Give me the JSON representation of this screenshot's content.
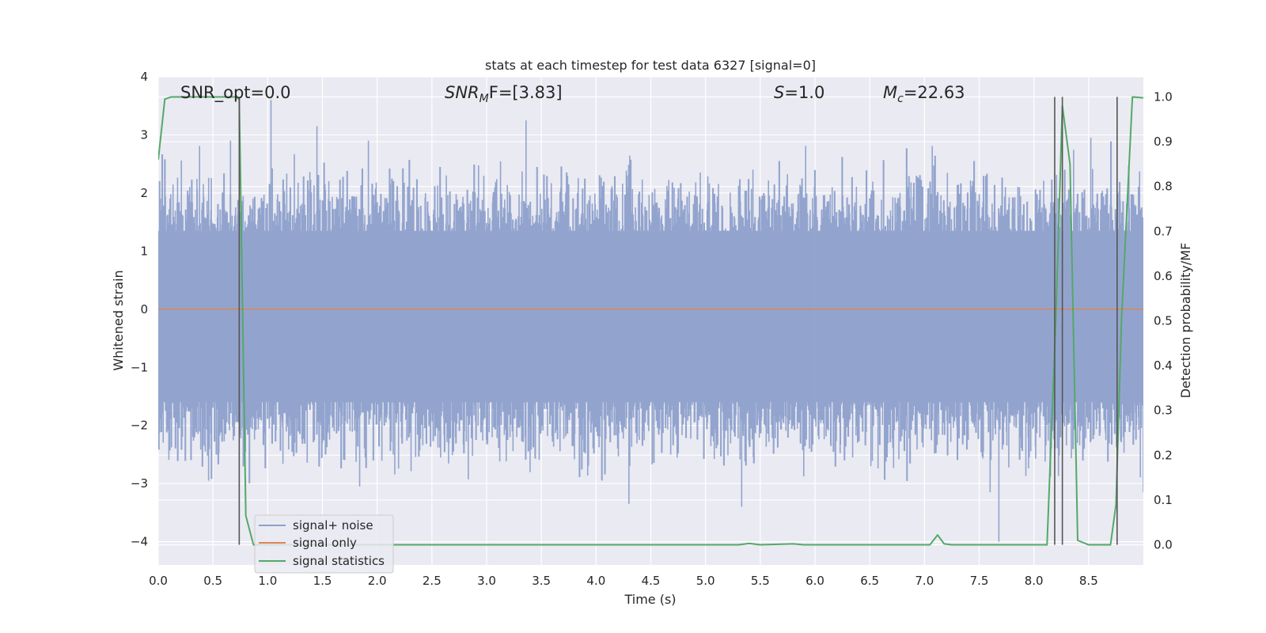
{
  "chart_data": {
    "type": "line",
    "title": "stats at each timestep for test data 6327 [signal=0]",
    "xlabel": "Time (s)",
    "ylabel": "Whitened strain",
    "y2label": "Detection probability/MF",
    "xlim": [
      0.0,
      9.0
    ],
    "ylim": [
      -4.4,
      4.0
    ],
    "y2lim": [
      -0.045,
      1.045
    ],
    "xticks": [
      0.0,
      0.5,
      1.0,
      1.5,
      2.0,
      2.5,
      3.0,
      3.5,
      4.0,
      4.5,
      5.0,
      5.5,
      6.0,
      6.5,
      7.0,
      7.5,
      8.0,
      8.5
    ],
    "xtick_labels": [
      "0.0",
      "0.5",
      "1.0",
      "1.5",
      "2.0",
      "2.5",
      "3.0",
      "3.5",
      "4.0",
      "4.5",
      "5.0",
      "5.5",
      "6.0",
      "6.5",
      "7.0",
      "7.5",
      "8.0",
      "8.5"
    ],
    "yticks": [
      4,
      3,
      2,
      1,
      0,
      -1,
      -2,
      -3,
      -4
    ],
    "ytick_labels": [
      "4",
      "3",
      "2",
      "1",
      "0",
      "−1",
      "−2",
      "−3",
      "−4"
    ],
    "y2ticks": [
      1.0,
      0.9,
      0.8,
      0.7,
      0.6,
      0.5,
      0.4,
      0.3,
      0.2,
      0.1,
      0.0
    ],
    "y2tick_labels": [
      "1.0",
      "0.9",
      "0.8",
      "0.7",
      "0.6",
      "0.5",
      "0.4",
      "0.3",
      "0.2",
      "0.1",
      "0.0"
    ],
    "grid": true,
    "legend_position": "lower-left",
    "annotations": {
      "snr_opt": "SNR_opt=0.0",
      "snr_mf_main": "SNR",
      "snr_mf_sub": "M",
      "snr_mf_rest": "F=[3.83]",
      "s_main": "S",
      "s_rest": "=1.0",
      "mc_main": "M",
      "mc_sub": "c",
      "mc_rest": "=22.63"
    },
    "series": [
      {
        "name": "signal+ noise",
        "color": "#8da0cb",
        "axis": "left",
        "noise": {
          "x_start": 0.0,
          "x_end": 9.0,
          "core_band": [
            -1.6,
            1.35
          ],
          "spikes": [
            {
              "x": 1.03,
              "y": 3.6
            },
            {
              "x": 1.45,
              "y": 3.15
            },
            {
              "x": 0.66,
              "y": 2.9
            },
            {
              "x": 1.92,
              "y": 2.9
            },
            {
              "x": 3.36,
              "y": 3.25
            },
            {
              "x": 8.52,
              "y": 2.95
            },
            {
              "x": 5.33,
              "y": -3.4
            },
            {
              "x": 4.3,
              "y": -3.35
            },
            {
              "x": 7.68,
              "y": -4.0
            },
            {
              "x": 7.6,
              "y": -3.15
            },
            {
              "x": 0.46,
              "y": -2.95
            },
            {
              "x": 1.84,
              "y": -3.05
            },
            {
              "x": 9.0,
              "y": -3.15
            }
          ]
        }
      },
      {
        "name": "signal only",
        "color": "#dd8452",
        "axis": "left",
        "x": [
          0.0,
          9.0
        ],
        "y": [
          0.0,
          0.0
        ]
      },
      {
        "name": "signal statistics",
        "color": "#55a868",
        "axis": "right",
        "x": [
          0.0,
          0.06,
          0.12,
          0.3,
          0.5,
          0.7,
          0.74,
          0.8,
          0.87,
          1.0,
          5.3,
          5.4,
          5.5,
          5.8,
          5.9,
          7.05,
          7.12,
          7.18,
          7.25,
          8.12,
          8.2,
          8.26,
          8.33,
          8.4,
          8.5,
          8.7,
          8.75,
          8.8,
          8.9,
          9.0
        ],
        "y": [
          0.86,
          0.995,
          1.0,
          1.0,
          1.0,
          1.0,
          0.995,
          0.065,
          0.0,
          0.0,
          0.0,
          0.003,
          0.0,
          0.002,
          0.0,
          0.0,
          0.022,
          0.002,
          0.0,
          0.0,
          0.5,
          0.98,
          0.85,
          0.01,
          0.0,
          0.0,
          0.09,
          0.5,
          1.0,
          0.998
        ]
      }
    ],
    "vertical_lines": {
      "color": "#555555",
      "x": [
        0.74,
        8.19,
        8.26,
        8.76
      ],
      "top_y2": 1.0,
      "bottom_y2": 0.0
    }
  }
}
